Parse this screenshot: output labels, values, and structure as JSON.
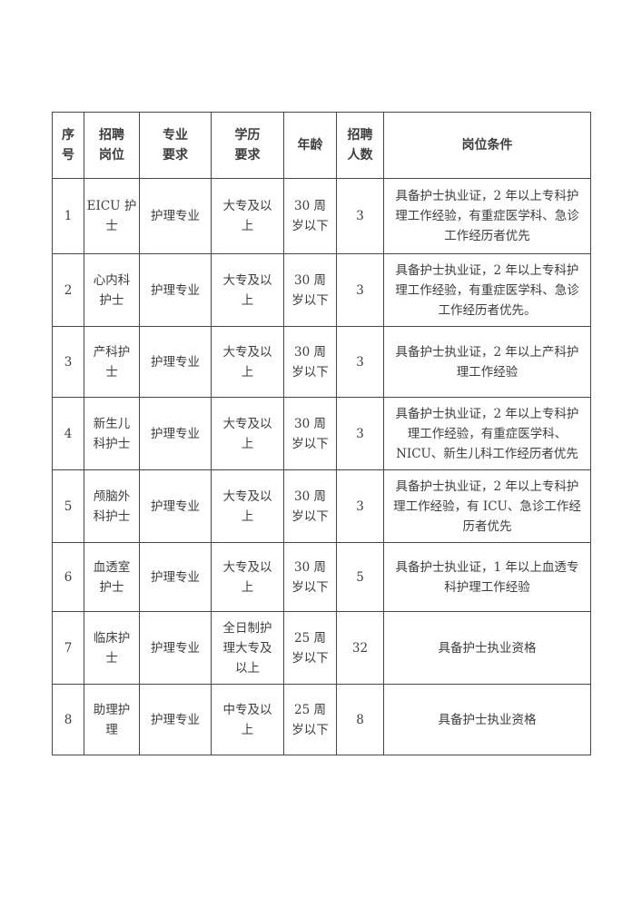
{
  "page": {
    "background_color": "#ffffff",
    "text_color": "#3d3d3d",
    "border_color": "#474747"
  },
  "table": {
    "headers": [
      "序\n号",
      "招聘\n岗位",
      "专业\n要求",
      "学历\n要求",
      "年龄",
      "招聘\n人数",
      "岗位条件"
    ],
    "rows": [
      {
        "cells": [
          "1",
          "EICU 护\n士",
          "护理专业",
          "大专及以\n上",
          "30 周\n岁以下",
          "3",
          "具备护士执业证，2 年以上专科护\n理工作经验，有重症医学科、急诊\n工作经历者优先"
        ]
      },
      {
        "cells": [
          "2",
          "心内科\n护士",
          "护理专业",
          "大专及以\n上",
          "30 周\n岁以下",
          "3",
          "具备护士执业证，2 年以上专科护\n理工作经验，有重症医学科、急诊\n工作经历者优先。"
        ]
      },
      {
        "cells": [
          "3",
          "产科护\n士",
          "护理专业",
          "大专及以\n上",
          "30 周\n岁以下",
          "3",
          "具备护士执业证，2 年以上产科护\n理工作经验"
        ]
      },
      {
        "cells": [
          "4",
          "新生儿\n科护士",
          "护理专业",
          "大专及以\n上",
          "30 周\n岁以下",
          "3",
          "具备护士执业证，2 年以上专科护\n理工作经验，有重症医学科、\nNICU、新生儿科工作经历者优先"
        ]
      },
      {
        "cells": [
          "5",
          "颅脑外\n科护士",
          "护理专业",
          "大专及以\n上",
          "30 周\n岁以下",
          "3",
          "具备护士执业证，2 年以上专科护\n理工作经验，有 ICU、急诊工作经\n历者优先"
        ]
      },
      {
        "cells": [
          "6",
          "血透室\n护士",
          "护理专业",
          "大专及以\n上",
          "30 周\n岁以下",
          "5",
          "具备护士执业证，1 年以上血透专\n科护理工作经验"
        ]
      },
      {
        "cells": [
          "7",
          "临床护\n士",
          "护理专业",
          "全日制护\n理大专及\n以上",
          "25 周\n岁以下",
          "32",
          "具备护士执业资格"
        ]
      },
      {
        "cells": [
          "8",
          "助理护\n理",
          "护理专业",
          "中专及以\n上",
          "25 周\n岁以下",
          "8",
          "具备护士执业资格"
        ]
      }
    ]
  }
}
